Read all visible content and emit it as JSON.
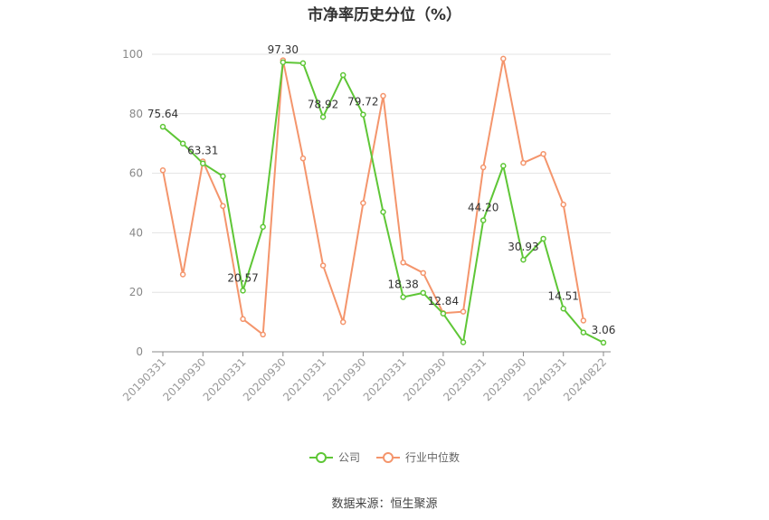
{
  "chart_data": {
    "type": "line",
    "title": "市净率历史分位（%）",
    "source": "数据来源：恒生聚源",
    "ylim": [
      0,
      100
    ],
    "y_ticks": [
      0,
      20,
      40,
      60,
      80,
      100
    ],
    "x_tick_labels": [
      "20190331",
      "20190930",
      "20200331",
      "20200930",
      "20210331",
      "20210930",
      "20220331",
      "20220930",
      "20230331",
      "20230930",
      "20240331",
      "20240822"
    ],
    "grid": true,
    "legend_position": "bottom",
    "series": [
      {
        "name": "公司",
        "color": "#5ec636",
        "values": [
          75.64,
          70.0,
          63.31,
          59.0,
          20.57,
          42.0,
          97.3,
          97.0,
          78.92,
          93.0,
          79.72,
          47.0,
          18.38,
          19.8,
          12.84,
          3.2,
          44.2,
          62.5,
          30.93,
          38.0,
          14.51,
          6.5,
          3.06
        ],
        "labels": {
          "0": "75.64",
          "2": "63.31",
          "4": "20.57",
          "6": "97.30",
          "8": "78.92",
          "10": "79.72",
          "12": "18.38",
          "14": "12.84",
          "16": "44.20",
          "18": "30.93",
          "20": "14.51",
          "22": "3.06"
        }
      },
      {
        "name": "行业中位数",
        "color": "#f4956c",
        "values": [
          61.0,
          26.0,
          64.0,
          49.0,
          11.0,
          5.8,
          98.0,
          65.0,
          29.0,
          10.0,
          50.0,
          86.0,
          30.0,
          26.5,
          13.0,
          13.5,
          62.0,
          98.5,
          63.5,
          66.5,
          49.5,
          10.5,
          null
        ]
      }
    ]
  }
}
